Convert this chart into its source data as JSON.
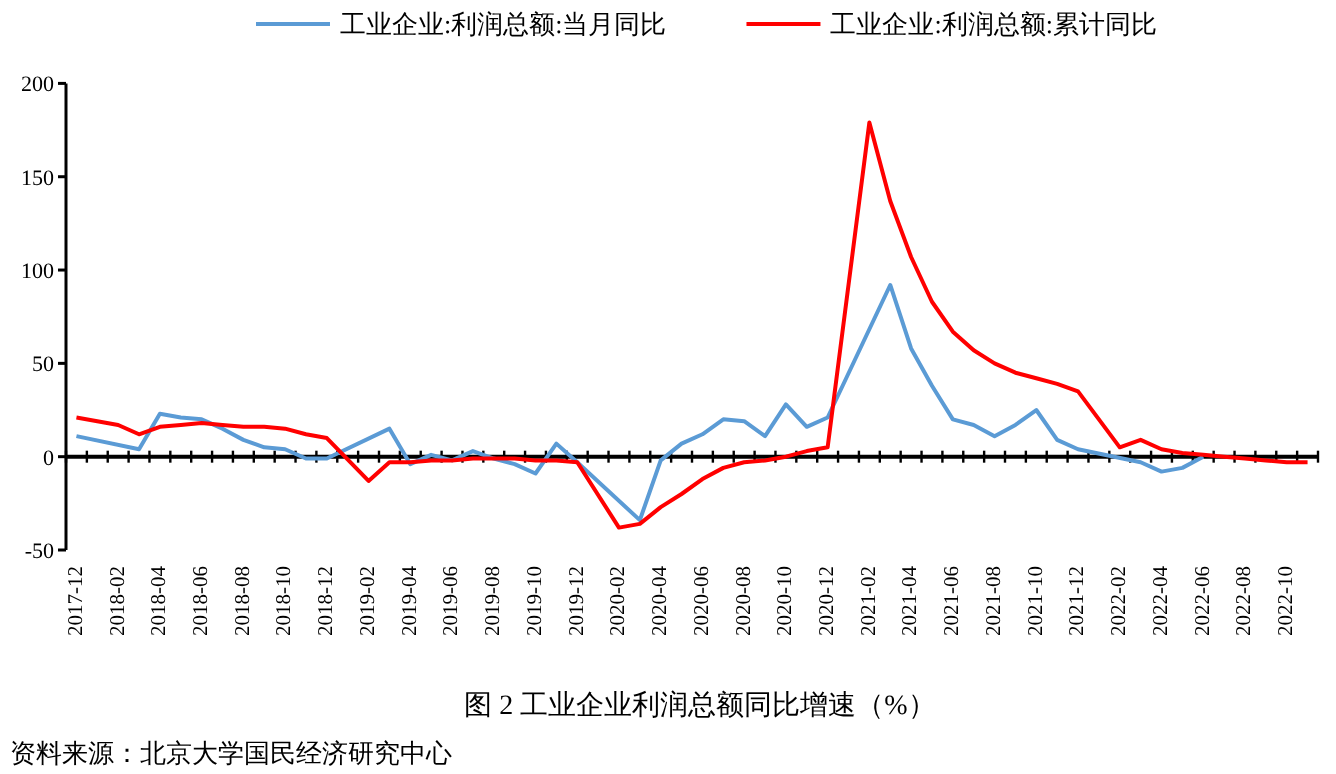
{
  "chart_data": {
    "type": "line",
    "title": "图 2 工业企业利润总额同比增速（%）",
    "annotations": [
      "资料来源：北京大学国民经济研究中心"
    ],
    "categories": [
      "2017-12",
      null,
      "2018-02",
      null,
      "2018-04",
      null,
      "2018-06",
      null,
      "2018-08",
      null,
      "2018-10",
      null,
      "2018-12",
      null,
      "2019-02",
      null,
      "2019-04",
      null,
      "2019-06",
      null,
      "2019-08",
      null,
      "2019-10",
      null,
      "2019-12",
      null,
      "2020-02",
      null,
      "2020-04",
      null,
      "2020-06",
      null,
      "2020-08",
      null,
      "2020-10",
      null,
      "2020-12",
      null,
      "2021-02",
      null,
      "2021-04",
      null,
      "2021-06",
      null,
      "2021-08",
      null,
      "2021-10",
      null,
      "2021-12",
      null,
      "2022-02",
      null,
      "2022-04",
      null,
      "2022-06",
      null,
      "2022-08",
      null,
      "2022-10",
      null
    ],
    "series": [
      {
        "name": "工业企业:利润总额:当月同比",
        "color": "#5b9bd5",
        "values": [
          11,
          null,
          null,
          4,
          23,
          21,
          20,
          15,
          9,
          5,
          4,
          -1,
          -1,
          null,
          null,
          15,
          -4,
          1,
          -2,
          3,
          -1,
          -4,
          -9,
          7,
          -3,
          null,
          null,
          -34,
          -2,
          7,
          12,
          20,
          19,
          11,
          28,
          16,
          21,
          null,
          null,
          92,
          58,
          38,
          20,
          17,
          11,
          17,
          25,
          9,
          4,
          null,
          null,
          -3,
          -8,
          -6,
          0,
          null,
          null,
          null,
          null,
          null
        ]
      },
      {
        "name": "工业企业:利润总额:累计同比",
        "color": "#ff0000",
        "values": [
          21,
          null,
          17,
          12,
          16,
          17,
          18,
          17,
          16,
          16,
          15,
          12,
          10,
          null,
          -13,
          -3,
          -3,
          -2,
          -2,
          -1,
          -1,
          -1,
          -2,
          -2,
          -3,
          null,
          -38,
          -36,
          -27,
          -20,
          -12,
          -6,
          -3,
          -2,
          0,
          3,
          5,
          null,
          179,
          137,
          107,
          83,
          67,
          57,
          50,
          45,
          42,
          39,
          35,
          null,
          5,
          9,
          4,
          2,
          1,
          0,
          -1,
          -2,
          -3,
          -3
        ]
      }
    ],
    "ylim": [
      -50,
      200
    ],
    "yticks": [
      -50,
      0,
      50,
      100,
      150,
      200
    ],
    "legend": "top"
  }
}
